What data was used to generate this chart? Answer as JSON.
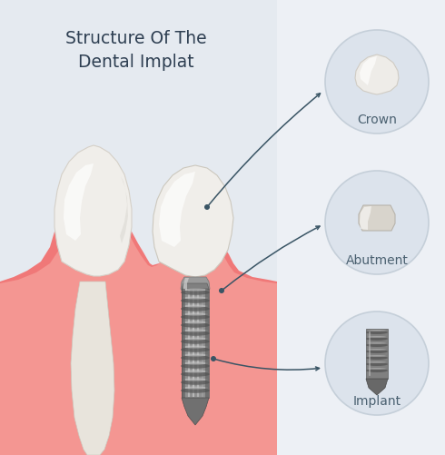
{
  "title_line1": "Structure Of The",
  "title_line2": "Dental Implat",
  "title_color": "#2e3f52",
  "title_fontsize": 13.5,
  "bg_color": "#e5eaf0",
  "right_panel_color": "#edf0f5",
  "label_crown": "Crown",
  "label_abutment": "Abutment",
  "label_implant": "Implant",
  "label_color": "#4a6070",
  "label_fontsize": 10,
  "gum_color": "#f07878",
  "gum_light_color": "#f8b0a8",
  "bone_color": "#dfc9a0",
  "circle_bg": "#dce3ec",
  "circle_edge": "#c5cfd9",
  "arrow_color": "#3a5565",
  "tooth_base": "#f0eeea",
  "tooth_white": "#fafaf8",
  "screw_mid": "#909090",
  "screw_dark": "#606060",
  "screw_light": "#c8c8c8"
}
